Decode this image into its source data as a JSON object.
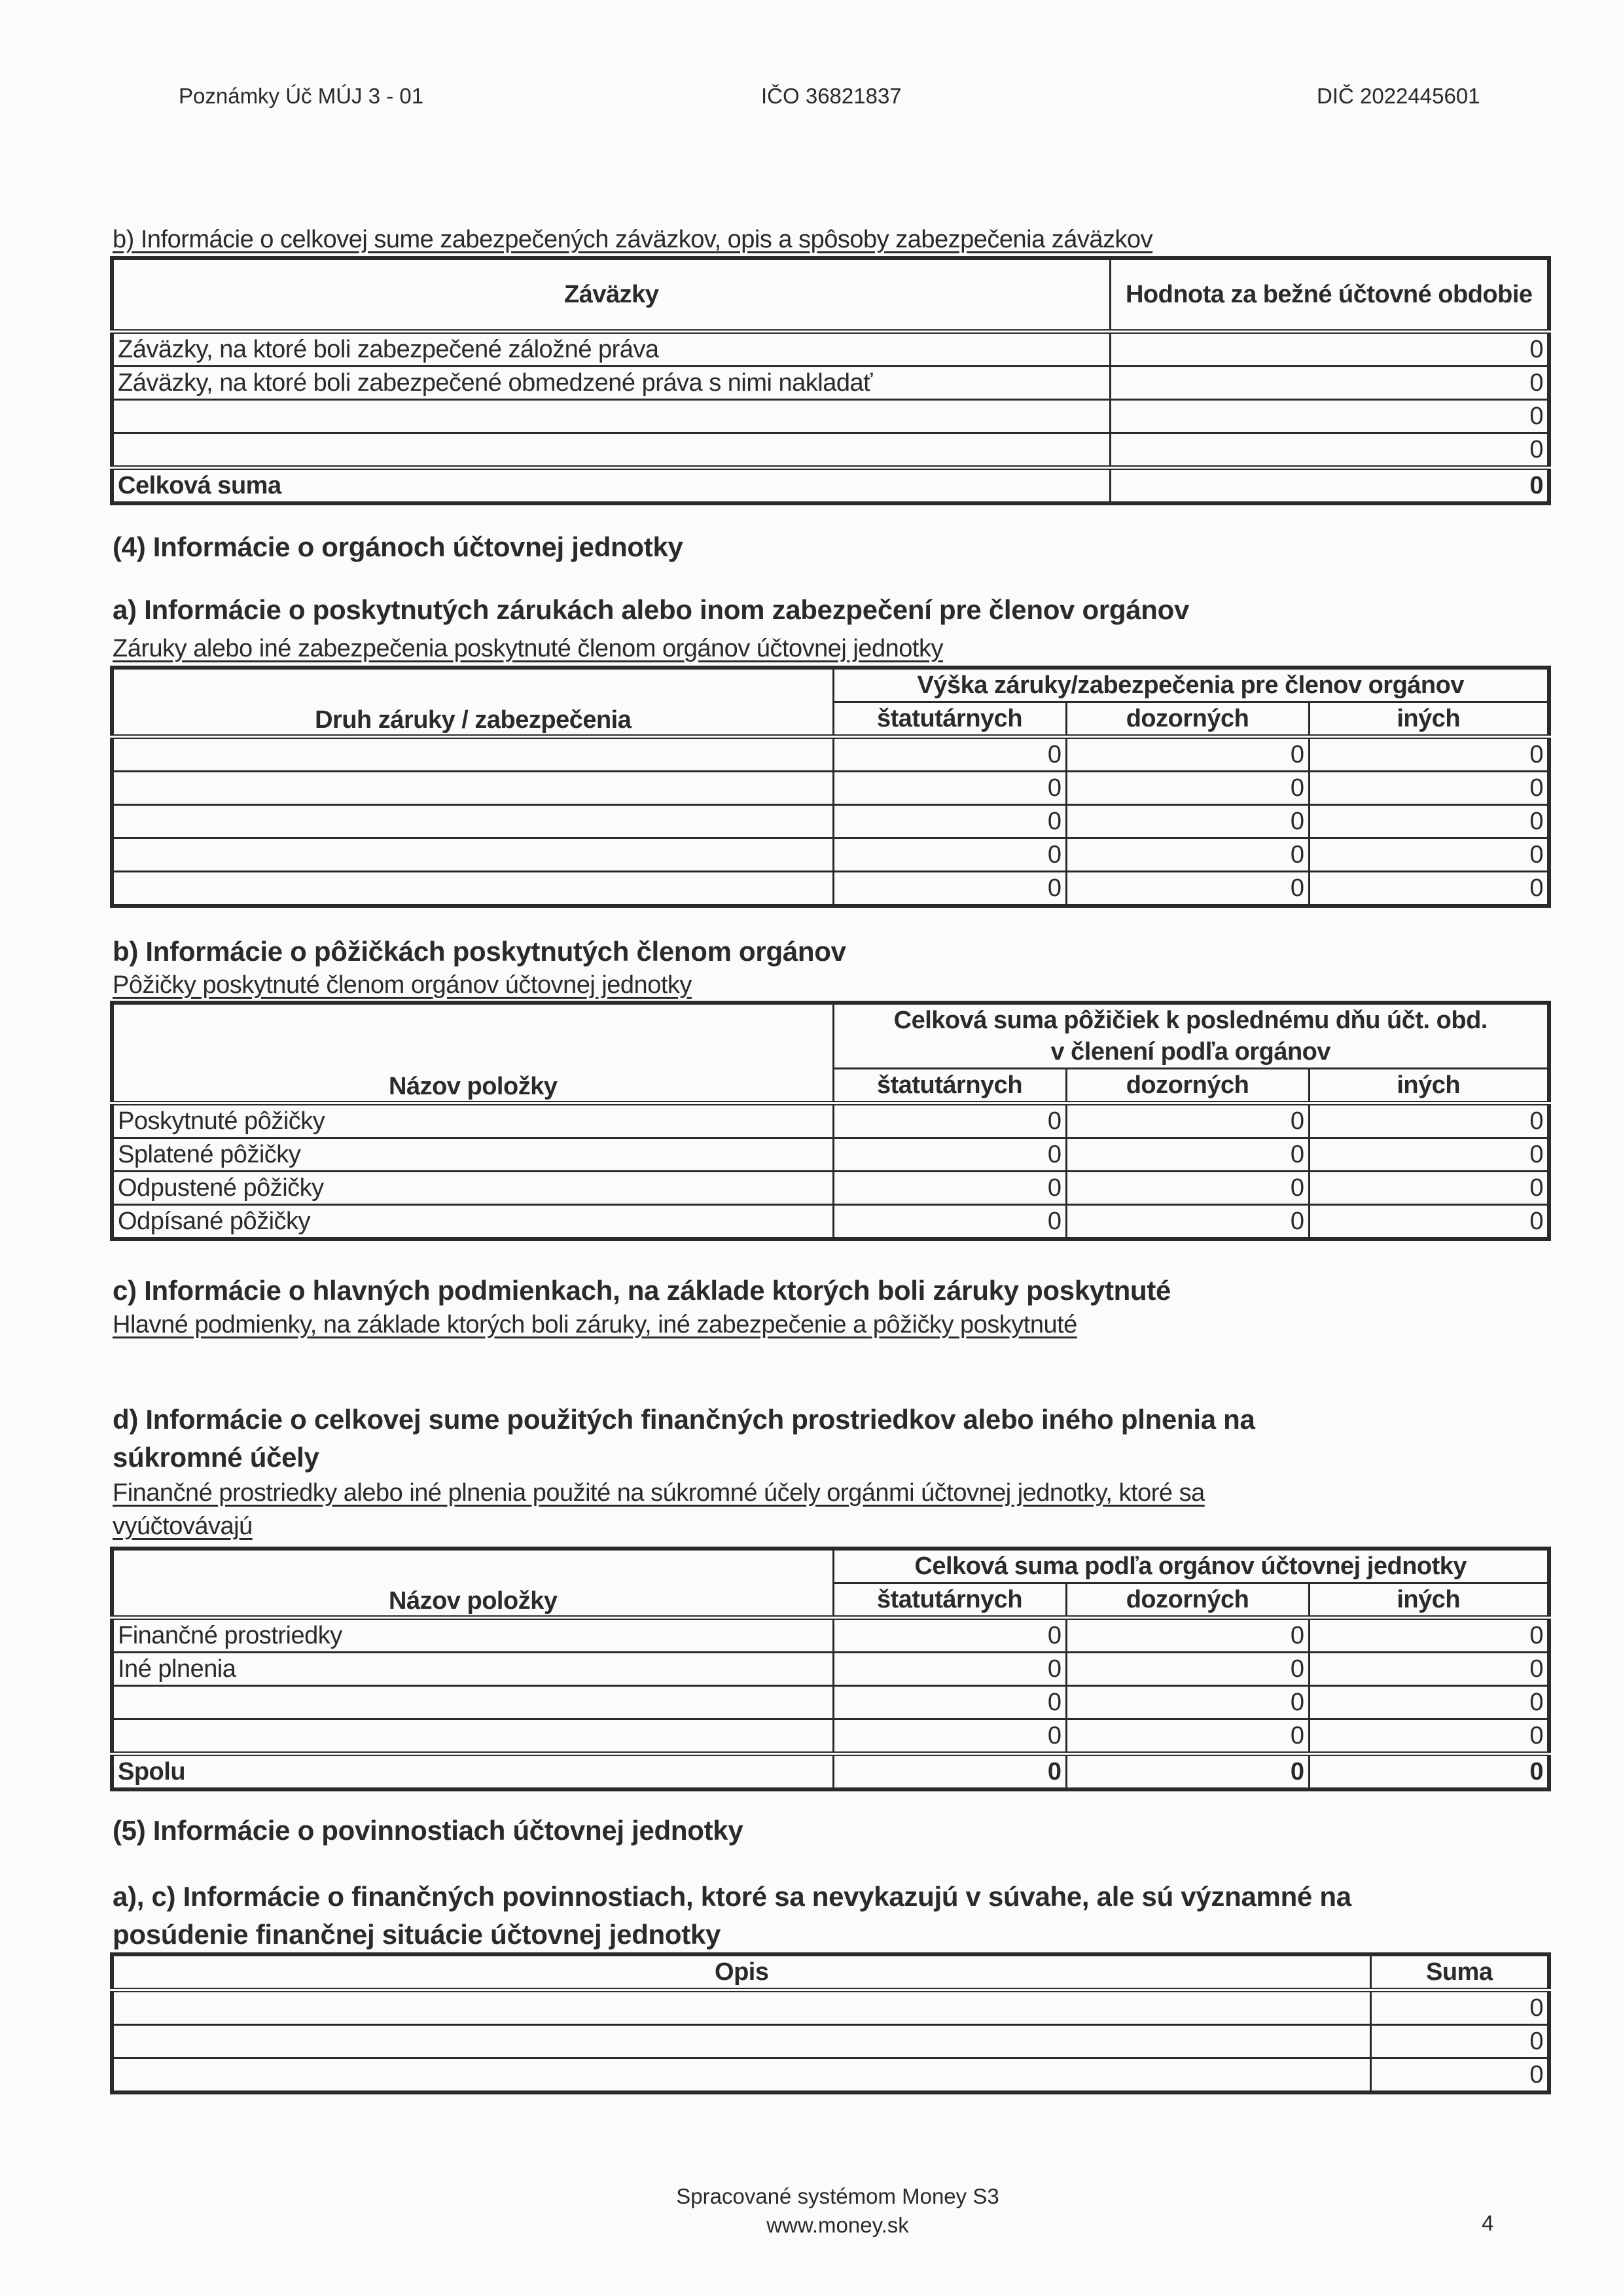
{
  "header": {
    "left": "Poznámky Úč MÚJ 3 - 01",
    "ico": "IČO 36821837",
    "dic": "DIČ 2022445601"
  },
  "sec_b1": {
    "title": "b) Informácie o celkovej sume zabezpečených záväzkov, opis a spôsoby zabezpečenia záväzkov",
    "col1": "Záväzky",
    "col2": "Hodnota za bežné účtovné obdobie",
    "rows": [
      {
        "label": "Záväzky, na ktoré boli zabezpečené záložné práva",
        "value": "0"
      },
      {
        "label": "Záväzky, na ktoré boli zabezpečené obmedzené práva s nimi nakladať",
        "value": "0"
      },
      {
        "label": "",
        "value": "0"
      },
      {
        "label": "",
        "value": "0"
      }
    ],
    "total": {
      "label": "Celková suma",
      "value": "0"
    }
  },
  "sec4": {
    "title": "(4) Informácie o orgánoch účtovnej jednotky"
  },
  "sec4a": {
    "title": "a) Informácie o poskytnutých zárukách alebo inom zabezpečení pre členov orgánov",
    "subtitle": "Záruky alebo iné zabezpečenia poskytnuté členom orgánov účtovnej jednotky",
    "group_header": "Výška záruky/zabezpečenia pre členov orgánov",
    "col1": "Druh záruky / zabezpečenia",
    "cols": [
      "štatutárnych",
      "dozorných",
      "iných"
    ],
    "rows": [
      [
        "",
        "0",
        "0",
        "0"
      ],
      [
        "",
        "0",
        "0",
        "0"
      ],
      [
        "",
        "0",
        "0",
        "0"
      ],
      [
        "",
        "0",
        "0",
        "0"
      ],
      [
        "",
        "0",
        "0",
        "0"
      ]
    ]
  },
  "sec4b": {
    "title": "b) Informácie o pôžičkách poskytnutých členom orgánov",
    "subtitle": "Pôžičky poskytnuté členom orgánov účtovnej jednotky",
    "group_header_1": "Celková suma pôžičiek k poslednému dňu účt. obd.",
    "group_header_2": "v členení podľa orgánov",
    "col1": "Názov položky",
    "cols": [
      "štatutárnych",
      "dozorných",
      "iných"
    ],
    "rows": [
      [
        "Poskytnuté pôžičky",
        "0",
        "0",
        "0"
      ],
      [
        "Splatené pôžičky",
        "0",
        "0",
        "0"
      ],
      [
        "Odpustené pôžičky",
        "0",
        "0",
        "0"
      ],
      [
        "Odpísané pôžičky",
        "0",
        "0",
        "0"
      ]
    ]
  },
  "sec4c": {
    "title": "c) Informácie o hlavných podmienkach, na základe ktorých boli  záruky poskytnuté",
    "subtitle": "Hlavné podmienky, na základe ktorých boli záruky, iné zabezpečenie a pôžičky poskytnuté"
  },
  "sec4d": {
    "title_1": "d) Informácie o celkovej sume použitých finančných prostriedkov alebo iného plnenia na",
    "title_2": "súkromné účely",
    "subtitle_1": "Finančné prostriedky alebo iné plnenia použité na súkromné účely orgánmi účtovnej jednotky, ktoré sa",
    "subtitle_2": "vyúčtovávajú",
    "group_header": "Celková suma podľa orgánov účtovnej jednotky",
    "col1": "Názov položky",
    "cols": [
      "štatutárnych",
      "dozorných",
      "iných"
    ],
    "rows": [
      [
        "Finančné prostriedky",
        "0",
        "0",
        "0"
      ],
      [
        "Iné plnenia",
        "0",
        "0",
        "0"
      ],
      [
        "",
        "0",
        "0",
        "0"
      ],
      [
        "",
        "0",
        "0",
        "0"
      ]
    ],
    "total": [
      "Spolu",
      "0",
      "0",
      "0"
    ]
  },
  "sec5": {
    "title": "(5) Informácie o povinnostiach účtovnej jednotky"
  },
  "sec5ac": {
    "title_1": "a), c) Informácie o finančných povinnostiach, ktoré sa nevykazujú v súvahe, ale sú významné na",
    "title_2": "posúdenie finančnej situácie účtovnej jednotky",
    "col1": "Opis",
    "col2": "Suma",
    "rows": [
      [
        "",
        "0"
      ],
      [
        "",
        "0"
      ],
      [
        "",
        "0"
      ]
    ]
  },
  "footer": {
    "line1": "Spracované systémom Money S3",
    "line2": "www.money.sk",
    "page": "4"
  }
}
